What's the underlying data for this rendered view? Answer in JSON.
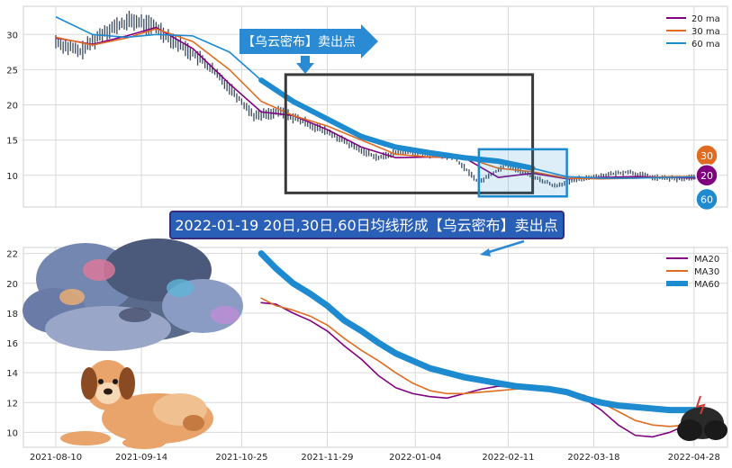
{
  "chart_data": [
    {
      "type": "line",
      "panel": "top",
      "ylim": [
        5.5,
        34
      ],
      "yticks": [
        10,
        15,
        20,
        25,
        30
      ],
      "x_range": [
        "2021-08-10",
        "2022-05-08"
      ],
      "grid": true,
      "legend_position": "top-right",
      "series": [
        {
          "name": "20 ma",
          "color": "#800080",
          "x": [
            "2021-08-10",
            "2021-08-25",
            "2021-09-08",
            "2021-09-20",
            "2021-10-05",
            "2021-10-20",
            "2021-11-02",
            "2021-11-15",
            "2021-11-29",
            "2021-12-13",
            "2021-12-27",
            "2022-01-10",
            "2022-01-24",
            "2022-02-07",
            "2022-02-21",
            "2022-03-07",
            "2022-03-21",
            "2022-04-04",
            "2022-04-18",
            "2022-05-02"
          ],
          "y": [
            29.5,
            28.6,
            29.8,
            31.0,
            28.0,
            23.0,
            19.0,
            18.5,
            16.5,
            14.0,
            12.5,
            12.6,
            12.5,
            9.7,
            10.3,
            9.5,
            9.7,
            9.8,
            9.7,
            9.6
          ]
        },
        {
          "name": "30 ma",
          "color": "#e06c22",
          "x": [
            "2021-08-10",
            "2021-08-25",
            "2021-09-08",
            "2021-09-20",
            "2021-10-05",
            "2021-10-20",
            "2021-11-02",
            "2021-11-15",
            "2021-11-29",
            "2021-12-13",
            "2021-12-27",
            "2022-01-10",
            "2022-01-24",
            "2022-02-07",
            "2022-02-21",
            "2022-03-07",
            "2022-03-21",
            "2022-04-04",
            "2022-04-18",
            "2022-05-02"
          ],
          "y": [
            29.6,
            28.5,
            29.5,
            30.8,
            29.0,
            25.0,
            20.5,
            18.5,
            17.0,
            15.0,
            13.0,
            12.6,
            12.6,
            11.0,
            10.5,
            9.6,
            9.5,
            9.6,
            9.8,
            9.8
          ]
        },
        {
          "name": "60 ma",
          "color": "#1e8ad0",
          "x": [
            "2021-08-10",
            "2021-08-25",
            "2021-09-08",
            "2021-09-20",
            "2021-10-05",
            "2021-10-20",
            "2021-11-02",
            "2021-11-15",
            "2021-11-29",
            "2021-12-13",
            "2021-12-27",
            "2022-01-10",
            "2022-01-24",
            "2022-02-07",
            "2022-02-21",
            "2022-03-07",
            "2022-03-21",
            "2022-04-04",
            "2022-04-18",
            "2022-05-02"
          ],
          "y": [
            32.5,
            30.0,
            29.6,
            30.0,
            29.8,
            27.5,
            23.5,
            20.5,
            18.0,
            15.5,
            14.0,
            13.2,
            12.5,
            12.0,
            11.0,
            9.8,
            9.6,
            9.6,
            9.7,
            9.8
          ]
        },
        {
          "name": "price",
          "color": "#3a4a60",
          "x": [
            "2021-08-10",
            "2021-08-20",
            "2021-08-30",
            "2021-09-10",
            "2021-09-20",
            "2021-09-30",
            "2021-10-10",
            "2021-10-20",
            "2021-10-30",
            "2021-11-10",
            "2021-11-20",
            "2021-11-30",
            "2021-12-10",
            "2021-12-20",
            "2021-12-30",
            "2022-01-10",
            "2022-01-20",
            "2022-01-30",
            "2022-02-10",
            "2022-02-20",
            "2022-03-02",
            "2022-03-12",
            "2022-03-22",
            "2022-04-01",
            "2022-04-11",
            "2022-04-21",
            "2022-05-01"
          ],
          "y": [
            29.0,
            27.5,
            30.5,
            32.0,
            31.0,
            28.5,
            26.0,
            22.5,
            18.5,
            19.0,
            17.5,
            16.0,
            14.0,
            12.5,
            13.5,
            13.0,
            12.5,
            9.0,
            11.5,
            10.0,
            8.5,
            9.5,
            10.0,
            10.5,
            9.7,
            9.5,
            9.8
          ]
        }
      ],
      "badges": [
        {
          "label": "30",
          "color": "#e06c22",
          "value": 12.8
        },
        {
          "label": "20",
          "color": "#800080",
          "value": 10.0
        },
        {
          "label": "60",
          "color": "#1e8ad0",
          "value": 6.6
        }
      ],
      "callout_box": {
        "x0": "2021-11-12",
        "x1": "2022-02-21",
        "y0": 7.5,
        "y1": 24.3
      },
      "focus_box": {
        "x0": "2022-01-30",
        "x1": "2022-03-07",
        "y0": 7.0,
        "y1": 13.7
      },
      "annotation": "【乌云密布】卖出点"
    },
    {
      "type": "line",
      "panel": "bottom",
      "ylim": [
        9,
        22.4
      ],
      "yticks": [
        10,
        12,
        14,
        16,
        18,
        20,
        22
      ],
      "x_range": [
        "2021-08-10",
        "2022-05-08"
      ],
      "xticks": [
        "2021-08-10",
        "2021-09-14",
        "2021-10-25",
        "2021-11-29",
        "2022-01-04",
        "2022-02-11",
        "2022-03-18",
        "2022-04-28"
      ],
      "grid": true,
      "legend_position": "top-right",
      "series": [
        {
          "name": "MA20",
          "color": "#800080",
          "x": [
            "2021-11-02",
            "2021-11-08",
            "2021-11-15",
            "2021-11-22",
            "2021-11-29",
            "2021-12-06",
            "2021-12-13",
            "2021-12-20",
            "2021-12-27",
            "2022-01-03",
            "2022-01-10",
            "2022-01-17",
            "2022-01-24",
            "2022-01-31",
            "2022-02-07",
            "2022-02-14",
            "2022-02-21",
            "2022-02-28",
            "2022-03-07",
            "2022-03-14",
            "2022-03-21",
            "2022-03-28",
            "2022-04-04",
            "2022-04-11",
            "2022-04-18",
            "2022-04-25",
            "2022-05-02"
          ],
          "y": [
            18.7,
            18.6,
            18.0,
            17.5,
            16.8,
            15.8,
            14.9,
            13.8,
            13.0,
            12.6,
            12.4,
            12.3,
            12.6,
            12.9,
            13.1,
            13.0,
            13.0,
            12.9,
            12.7,
            12.3,
            11.5,
            10.5,
            9.8,
            9.7,
            10.0,
            10.5,
            11.0
          ]
        },
        {
          "name": "MA30",
          "color": "#e06c22",
          "x": [
            "2021-11-02",
            "2021-11-08",
            "2021-11-15",
            "2021-11-22",
            "2021-11-29",
            "2021-12-06",
            "2021-12-13",
            "2021-12-20",
            "2021-12-27",
            "2022-01-03",
            "2022-01-10",
            "2022-01-17",
            "2022-01-24",
            "2022-01-31",
            "2022-02-07",
            "2022-02-14",
            "2022-02-21",
            "2022-02-28",
            "2022-03-07",
            "2022-03-14",
            "2022-03-21",
            "2022-03-28",
            "2022-04-04",
            "2022-04-11",
            "2022-04-18",
            "2022-04-25",
            "2022-05-02"
          ],
          "y": [
            19.0,
            18.5,
            18.2,
            17.8,
            17.2,
            16.3,
            15.5,
            14.8,
            14.0,
            13.3,
            12.8,
            12.6,
            12.6,
            12.7,
            12.8,
            12.9,
            13.0,
            12.9,
            12.8,
            12.5,
            12.0,
            11.4,
            10.8,
            10.5,
            10.4,
            10.5,
            10.6
          ]
        },
        {
          "name": "MA60",
          "color": "#1e8ad0",
          "x": [
            "2021-11-02",
            "2021-11-08",
            "2021-11-15",
            "2021-11-22",
            "2021-11-29",
            "2021-12-06",
            "2021-12-13",
            "2021-12-20",
            "2021-12-27",
            "2022-01-03",
            "2022-01-10",
            "2022-01-17",
            "2022-01-24",
            "2022-01-31",
            "2022-02-07",
            "2022-02-14",
            "2022-02-21",
            "2022-02-28",
            "2022-03-07",
            "2022-03-14",
            "2022-03-21",
            "2022-03-28",
            "2022-04-04",
            "2022-04-11",
            "2022-04-18",
            "2022-04-25",
            "2022-05-02"
          ],
          "y": [
            22.0,
            21.0,
            20.0,
            19.3,
            18.5,
            17.5,
            16.8,
            16.0,
            15.3,
            14.8,
            14.3,
            14.0,
            13.7,
            13.5,
            13.3,
            13.1,
            13.0,
            12.9,
            12.7,
            12.3,
            12.0,
            11.8,
            11.7,
            11.6,
            11.5,
            11.5,
            11.5
          ]
        }
      ]
    }
  ],
  "top_annotation": "【乌云密布】卖出点",
  "bottom_annotation": "2022-01-19 20日,30日,60日均线形成【乌云密布】卖出点",
  "colors": {
    "ma20": "#800080",
    "ma30": "#e06c22",
    "ma60": "#1e8ad0",
    "price": "#3a4a60",
    "grid": "#d9d9d9",
    "callout": "#3a3a3a",
    "focus": "#1e8ad0"
  },
  "decorations": [
    "storm-cloud-icon",
    "dog-icon",
    "small-dark-cloud-icon"
  ]
}
